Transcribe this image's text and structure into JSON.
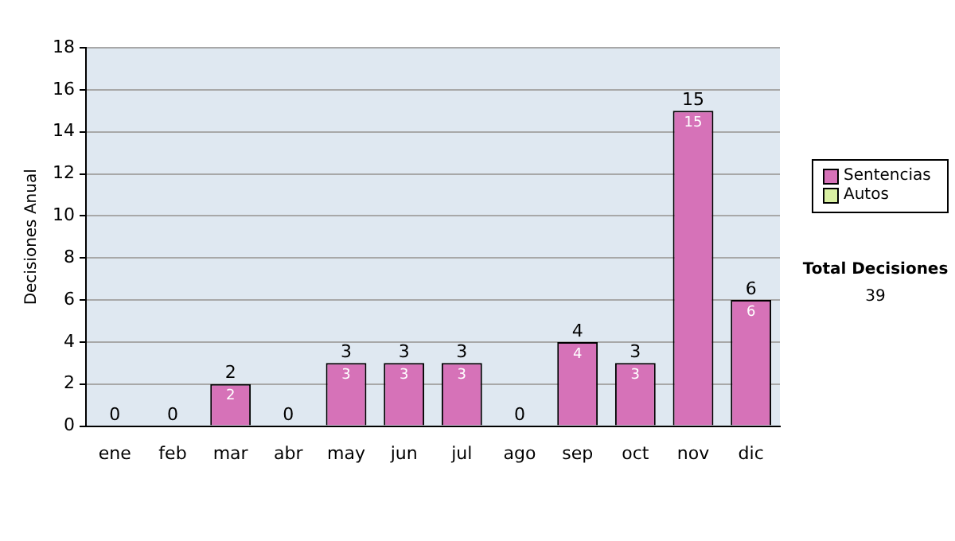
{
  "chart_data": {
    "type": "bar",
    "ylabel": "Decisiones Anual",
    "categories": [
      "ene",
      "feb",
      "mar",
      "abr",
      "may",
      "jun",
      "jul",
      "ago",
      "sep",
      "oct",
      "nov",
      "dic"
    ],
    "stacked": true,
    "series": [
      {
        "name": "Sentencias",
        "color": "#d672b8",
        "values": [
          0,
          0,
          2,
          0,
          3,
          3,
          3,
          0,
          4,
          3,
          15,
          6
        ],
        "value_labels": [
          null,
          null,
          "2",
          null,
          "3",
          "3",
          "3",
          null,
          "4",
          "3",
          "15",
          "6"
        ]
      },
      {
        "name": "Autos",
        "color": "#d9f0a3",
        "values": [
          0,
          0,
          0,
          0,
          0,
          0,
          0,
          0,
          0,
          0,
          0,
          0
        ]
      }
    ],
    "totals": [
      "0",
      "0",
      "2",
      "0",
      "3",
      "3",
      "3",
      "0",
      "4",
      "3",
      "15",
      "6"
    ],
    "ylim": [
      0,
      18
    ],
    "yticks": [
      0,
      2,
      4,
      6,
      8,
      10,
      12,
      14,
      16,
      18
    ],
    "grid": "y",
    "legend": "right",
    "annotations": [
      "Total Decisiones",
      "39"
    ]
  }
}
